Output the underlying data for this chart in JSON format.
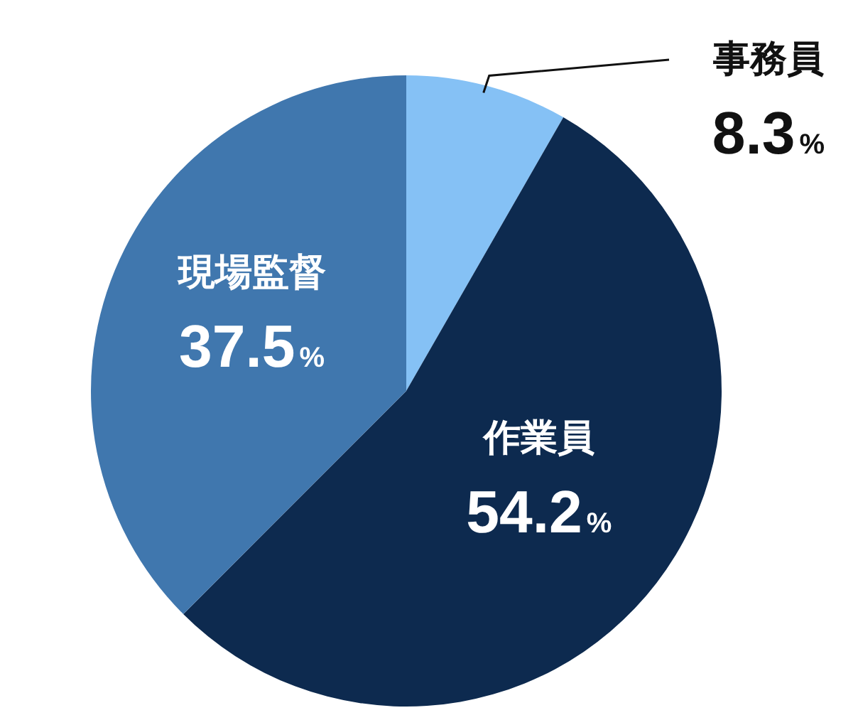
{
  "chart_data": {
    "type": "pie",
    "categories": [
      "事務員",
      "作業員",
      "現場監督"
    ],
    "values": [
      8.3,
      54.2,
      37.5
    ],
    "colors": [
      "#85c1f5",
      "#0d2a4f",
      "#4077ae"
    ],
    "value_labels": [
      "8.3%",
      "54.2%",
      "37.5%"
    ]
  }
}
